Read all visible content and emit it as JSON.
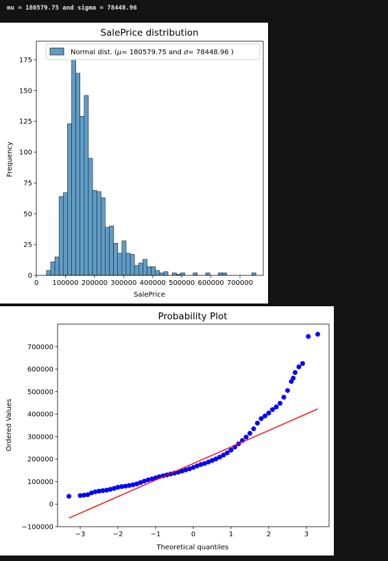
{
  "console": {
    "output_line": "mu = 180579.75 and sigma = 78448.96"
  },
  "colors": {
    "page_background": "#131313",
    "hist_fill": "#5e9dc8",
    "hist_edge": "#1a1a1a",
    "qq_points": "#0000ff",
    "qq_line": "#ff0000"
  },
  "chart_data": [
    {
      "type": "bar",
      "title": "SalePrice distribution",
      "xlabel": "SalePrice",
      "ylabel": "Frequency",
      "legend": {
        "label": "Normal dist. ($\\mu=$ 180579.75 and $\\sigma=$ 78448.96 )",
        "placement": "top-right"
      },
      "xlim": [
        0,
        780000
      ],
      "ylim": [
        0,
        190
      ],
      "xticks": [
        0,
        100000,
        200000,
        300000,
        400000,
        500000,
        600000,
        700000
      ],
      "xtick_labels": [
        "0",
        "100000",
        "200000",
        "300000",
        "400000",
        "500000",
        "600000",
        "700000"
      ],
      "yticks": [
        0,
        25,
        50,
        75,
        100,
        125,
        150,
        175
      ],
      "ytick_labels": [
        "0",
        "25",
        "50",
        "75",
        "100",
        "125",
        "150",
        "175"
      ],
      "grid": false,
      "bin_start": 34900,
      "bin_width": 14404.5,
      "values": [
        4,
        11,
        15,
        64,
        67,
        123,
        179,
        164,
        129,
        146,
        95,
        69,
        68,
        63,
        39,
        40,
        26,
        18,
        28,
        18,
        17,
        8,
        10,
        13,
        7,
        7,
        4,
        2,
        3,
        0,
        2,
        1,
        2,
        0,
        0,
        2,
        0,
        0,
        2,
        0,
        0,
        2,
        2,
        0,
        0,
        0,
        0,
        0,
        0,
        2
      ]
    },
    {
      "type": "scatter",
      "title": "Probability Plot",
      "xlabel": "Theoretical quantiles",
      "ylabel": "Ordered Values",
      "xlim": [
        -3.6,
        3.6
      ],
      "ylim": [
        -100000,
        800000
      ],
      "xticks": [
        -3,
        -2,
        -1,
        0,
        1,
        2,
        3
      ],
      "xtick_labels": [
        "−3",
        "−2",
        "−1",
        "0",
        "1",
        "2",
        "3"
      ],
      "yticks": [
        -100000,
        0,
        100000,
        200000,
        300000,
        400000,
        500000,
        600000,
        700000
      ],
      "ytick_labels": [
        "−100000",
        "0",
        "100000",
        "200000",
        "300000",
        "400000",
        "500000",
        "600000",
        "700000"
      ],
      "grid": false,
      "points": [
        [
          -3.3,
          35000
        ],
        [
          -3.0,
          38000
        ],
        [
          -2.9,
          40000
        ],
        [
          -2.8,
          42000
        ],
        [
          -2.7,
          50000
        ],
        [
          -2.6,
          55000
        ],
        [
          -2.5,
          58000
        ],
        [
          -2.4,
          60000
        ],
        [
          -2.3,
          62000
        ],
        [
          -2.2,
          66000
        ],
        [
          -2.1,
          70000
        ],
        [
          -2.0,
          75000
        ],
        [
          -1.9,
          78000
        ],
        [
          -1.8,
          80000
        ],
        [
          -1.7,
          83000
        ],
        [
          -1.6,
          86000
        ],
        [
          -1.5,
          90000
        ],
        [
          -1.4,
          96000
        ],
        [
          -1.3,
          102000
        ],
        [
          -1.2,
          108000
        ],
        [
          -1.1,
          112000
        ],
        [
          -1.0,
          117000
        ],
        [
          -0.9,
          122000
        ],
        [
          -0.8,
          126000
        ],
        [
          -0.7,
          130000
        ],
        [
          -0.6,
          134000
        ],
        [
          -0.5,
          138000
        ],
        [
          -0.4,
          142000
        ],
        [
          -0.3,
          147000
        ],
        [
          -0.2,
          152000
        ],
        [
          -0.1,
          157000
        ],
        [
          0.0,
          163000
        ],
        [
          0.1,
          170000
        ],
        [
          0.2,
          176000
        ],
        [
          0.3,
          181000
        ],
        [
          0.4,
          187000
        ],
        [
          0.5,
          194000
        ],
        [
          0.6,
          201000
        ],
        [
          0.7,
          209000
        ],
        [
          0.8,
          218000
        ],
        [
          0.9,
          228000
        ],
        [
          1.0,
          240000
        ],
        [
          1.1,
          254000
        ],
        [
          1.2,
          268000
        ],
        [
          1.3,
          283000
        ],
        [
          1.4,
          298000
        ],
        [
          1.5,
          315000
        ],
        [
          1.6,
          335000
        ],
        [
          1.7,
          360000
        ],
        [
          1.8,
          380000
        ],
        [
          1.9,
          392000
        ],
        [
          2.0,
          405000
        ],
        [
          2.1,
          420000
        ],
        [
          2.2,
          432000
        ],
        [
          2.3,
          448000
        ],
        [
          2.4,
          475000
        ],
        [
          2.5,
          505000
        ],
        [
          2.6,
          545000
        ],
        [
          2.65,
          560000
        ],
        [
          2.7,
          585000
        ],
        [
          2.8,
          610000
        ],
        [
          2.9,
          625000
        ],
        [
          3.05,
          745000
        ],
        [
          3.3,
          755000
        ]
      ],
      "fit_line": {
        "x": [
          -3.3,
          3.3
        ],
        "y": [
          -62000,
          423000
        ]
      }
    }
  ]
}
